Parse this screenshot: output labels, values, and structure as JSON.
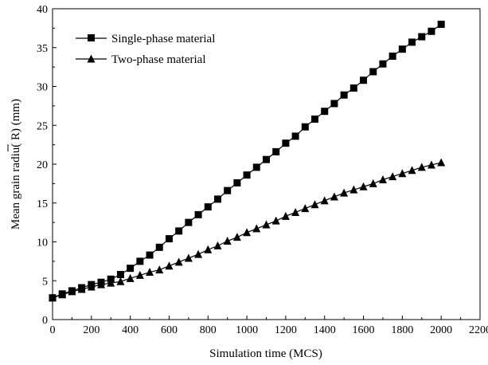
{
  "chart_data": {
    "type": "line",
    "xlabel": "Simulation time (MCS)",
    "ylabel": "Mean grain radiu( R) (mm)",
    "ylabel_overbar_char": "R",
    "xlim": [
      0,
      2200
    ],
    "ylim": [
      0,
      40
    ],
    "xticks": [
      "0",
      "200",
      "400",
      "600",
      "800",
      "1000",
      "1200",
      "1400",
      "1600",
      "1800",
      "2000",
      "2200"
    ],
    "yticks": [
      "0",
      "5",
      "10",
      "15",
      "20",
      "25",
      "30",
      "35",
      "40"
    ],
    "grid": false,
    "legend_position": "top-left",
    "series": [
      {
        "name": "Single-phase material",
        "marker": "square",
        "x": [
          0,
          50,
          100,
          150,
          200,
          250,
          300,
          350,
          400,
          450,
          500,
          550,
          600,
          650,
          700,
          750,
          800,
          850,
          900,
          950,
          1000,
          1050,
          1100,
          1150,
          1200,
          1250,
          1300,
          1350,
          1400,
          1450,
          1500,
          1550,
          1600,
          1650,
          1700,
          1750,
          1800,
          1850,
          1900,
          1950,
          2000
        ],
        "y": [
          2.8,
          3.3,
          3.7,
          4.1,
          4.5,
          4.8,
          5.2,
          5.8,
          6.6,
          7.5,
          8.3,
          9.3,
          10.4,
          11.4,
          12.5,
          13.5,
          14.5,
          15.5,
          16.6,
          17.6,
          18.6,
          19.6,
          20.6,
          21.6,
          22.7,
          23.6,
          24.8,
          25.8,
          26.8,
          27.8,
          28.9,
          29.8,
          30.8,
          31.9,
          32.9,
          33.9,
          34.8,
          35.7,
          36.4,
          37.1,
          38.0
        ]
      },
      {
        "name": "Two-phase material",
        "marker": "triangle",
        "x": [
          0,
          50,
          100,
          150,
          200,
          250,
          300,
          350,
          400,
          450,
          500,
          550,
          600,
          650,
          700,
          750,
          800,
          850,
          900,
          950,
          1000,
          1050,
          1100,
          1150,
          1200,
          1250,
          1300,
          1350,
          1400,
          1450,
          1500,
          1550,
          1600,
          1650,
          1700,
          1750,
          1800,
          1850,
          1900,
          1950,
          2000
        ],
        "y": [
          2.8,
          3.2,
          3.6,
          3.9,
          4.2,
          4.5,
          4.7,
          4.9,
          5.3,
          5.7,
          6.1,
          6.4,
          6.9,
          7.4,
          7.9,
          8.4,
          9.0,
          9.5,
          10.1,
          10.6,
          11.2,
          11.7,
          12.2,
          12.7,
          13.3,
          13.8,
          14.3,
          14.8,
          15.3,
          15.8,
          16.3,
          16.7,
          17.1,
          17.5,
          18.0,
          18.4,
          18.8,
          19.2,
          19.6,
          19.9,
          20.2
        ]
      }
    ]
  }
}
